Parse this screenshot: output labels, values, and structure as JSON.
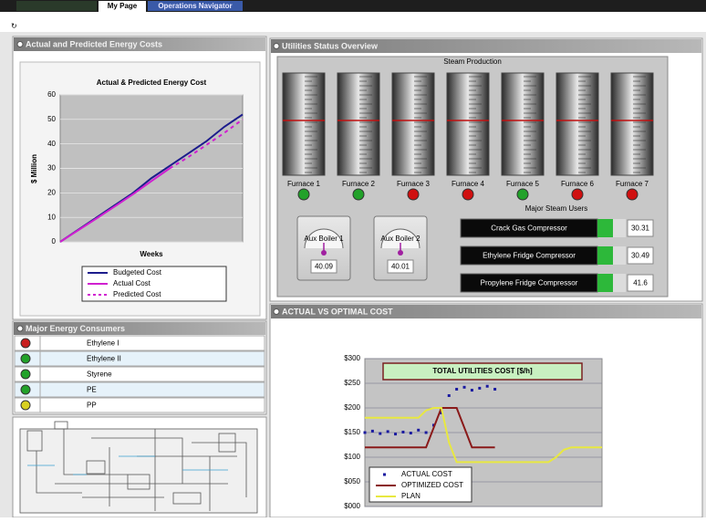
{
  "tabs": [
    "My Page",
    "Operations Navigator"
  ],
  "energy_panel": {
    "title": "Actual and Predicted Energy Costs"
  },
  "consumers": {
    "title": "Major Energy Consumers",
    "rows": [
      {
        "label": "Ethylene I",
        "color": "#c81e1e"
      },
      {
        "label": "Ethylene II",
        "color": "#22a22a"
      },
      {
        "label": "Styrene",
        "color": "#22a22a"
      },
      {
        "label": "PE",
        "color": "#22a22a"
      },
      {
        "label": "PP",
        "color": "#d8d020"
      }
    ]
  },
  "utilities": {
    "title": "Utilities Status Overview",
    "steam_title": "Steam Production",
    "furnaces": [
      {
        "label": "Furnace 1",
        "color": "#22a22a"
      },
      {
        "label": "Furnace 2",
        "color": "#22a22a"
      },
      {
        "label": "Furnace 3",
        "color": "#d01010"
      },
      {
        "label": "Furnace 4",
        "color": "#d01010"
      },
      {
        "label": "Furnace 5",
        "color": "#22a22a"
      },
      {
        "label": "Furnace 6",
        "color": "#d01010"
      },
      {
        "label": "Furnace 7",
        "color": "#d01010"
      }
    ],
    "boilers": [
      {
        "label": "Aux Boiler 1",
        "value": 40.09
      },
      {
        "label": "Aux Boiler 2",
        "value": 40.01
      }
    ],
    "users_title": "Major Steam Users",
    "users": [
      {
        "label": "Crack Gas Compressor",
        "value": 30.31
      },
      {
        "label": "Ethylene Fridge Compressor",
        "value": 30.49
      },
      {
        "label": "Propylene Fridge Compressor",
        "value": 41.6
      }
    ]
  },
  "cost_panel": {
    "title": "ACTUAL VS OPTIMAL COST"
  },
  "chart_data": [
    {
      "type": "line",
      "title": "Actual & Predicted Energy Cost",
      "y_label": "$ Million",
      "x_label": "Weeks",
      "ylim": [
        0,
        60
      ],
      "yticks": [
        0,
        10,
        20,
        30,
        40,
        50,
        60
      ],
      "grid": true,
      "series": [
        {
          "name": "Budgeted Cost",
          "color": "#1c1c8c",
          "mode": "line",
          "values": [
            0,
            5,
            10,
            15,
            20,
            26,
            31,
            36,
            41,
            47,
            52
          ]
        },
        {
          "name": "Actual Cost",
          "color": "#d020d0",
          "mode": "line",
          "values": [
            0,
            4.8,
            9.6,
            14.5,
            19.5,
            24.8,
            30,
            null,
            null,
            null,
            null
          ]
        },
        {
          "name": "Predicted Cost",
          "color": "#d020d0",
          "mode": "dashed",
          "values": [
            null,
            null,
            null,
            null,
            null,
            null,
            30,
            34.5,
            39.5,
            44.5,
            50
          ]
        }
      ]
    },
    {
      "type": "line",
      "title": "TOTAL UTILITIES COST [$/h]",
      "ylim": [
        0,
        300
      ],
      "yticks": [
        {
          "value": 0,
          "label": "$000"
        },
        {
          "value": 50,
          "label": "$050"
        },
        {
          "value": 100,
          "label": "$100"
        },
        {
          "value": 150,
          "label": "$150"
        },
        {
          "value": 200,
          "label": "$200"
        },
        {
          "value": 250,
          "label": "$250"
        },
        {
          "value": 300,
          "label": "$300"
        }
      ],
      "grid": true,
      "series": [
        {
          "name": "ACTUAL COST",
          "color": "#1a1aa0",
          "mode": "markers",
          "values": [
            150,
            153,
            148,
            152,
            147,
            151,
            149,
            155,
            150,
            165,
            190,
            225,
            238,
            242,
            236,
            240,
            244,
            238,
            null,
            null,
            null,
            null,
            null,
            null,
            null,
            null,
            null,
            null,
            null,
            null,
            null,
            null
          ]
        },
        {
          "name": "OPTIMIZED COST",
          "color": "#8a1a1a",
          "mode": "line",
          "values": [
            120,
            120,
            120,
            120,
            120,
            120,
            120,
            120,
            120,
            160,
            200,
            200,
            200,
            160,
            120,
            120,
            120,
            120,
            null,
            null,
            null,
            null,
            null,
            null,
            null,
            null,
            null,
            null,
            null,
            null,
            null,
            null
          ]
        },
        {
          "name": "PLAN",
          "color": "#e8e840",
          "mode": "line",
          "values": [
            180,
            180,
            180,
            180,
            180,
            180,
            180,
            180,
            195,
            200,
            200,
            130,
            90,
            90,
            90,
            90,
            90,
            90,
            90,
            90,
            90,
            90,
            90,
            90,
            90,
            100,
            115,
            120,
            120,
            120,
            120,
            120
          ]
        }
      ]
    }
  ]
}
